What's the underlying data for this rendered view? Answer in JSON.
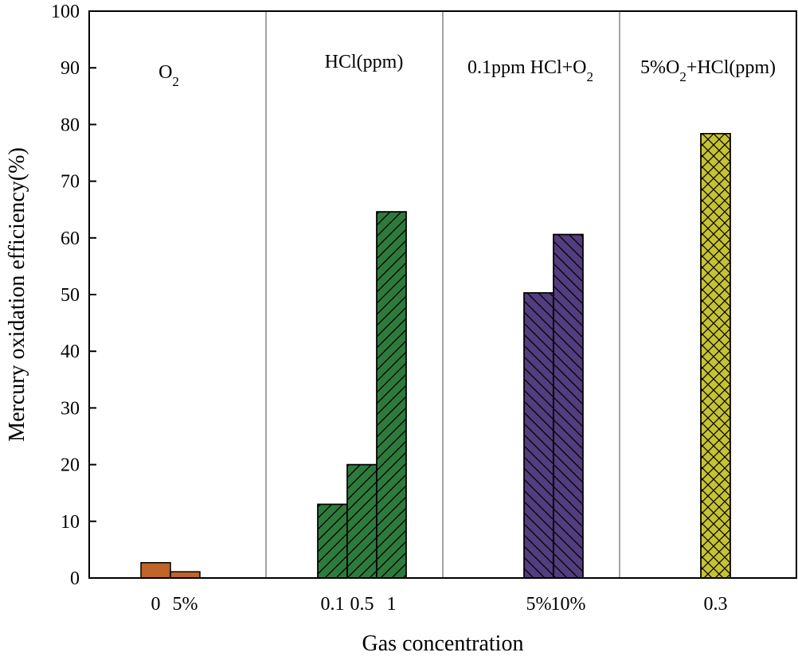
{
  "chart_data": {
    "type": "bar",
    "title": "",
    "xlabel": "Gas concentration",
    "ylabel": "Mercury oxidation efficiency(%)",
    "ylim": [
      0,
      100
    ],
    "yticks": [
      0,
      10,
      20,
      30,
      40,
      50,
      60,
      70,
      80,
      90,
      100
    ],
    "groups": [
      {
        "label": "O2",
        "label_parts": [
          {
            "t": "O"
          },
          {
            "t": "2",
            "sub": true
          }
        ],
        "color": "#c0642a",
        "pattern": "none",
        "bars": [
          {
            "category": "0",
            "value": 2.7
          },
          {
            "category": "5%",
            "value": 1.1
          }
        ]
      },
      {
        "label": "HCl(ppm)",
        "label_parts": [
          {
            "t": "HCl(ppm)"
          }
        ],
        "color": "#2e7a3c",
        "pattern": "forward-diagonal",
        "bars": [
          {
            "category": "0.1",
            "value": 13.0
          },
          {
            "category": "0.5",
            "value": 20.0
          },
          {
            "category": "1",
            "value": 64.6
          }
        ]
      },
      {
        "label": "0.1ppm HCl+O2",
        "label_parts": [
          {
            "t": "0.1ppm HCl+O"
          },
          {
            "t": "2",
            "sub": true
          }
        ],
        "color": "#523d7e",
        "pattern": "back-diagonal",
        "bars": [
          {
            "category": "5%",
            "value": 50.3
          },
          {
            "category": "10%",
            "value": 60.6
          }
        ]
      },
      {
        "label": "5%O2+HCl(ppm)",
        "label_parts": [
          {
            "t": "5%O"
          },
          {
            "t": "2",
            "sub": true
          },
          {
            "t": "+HCl(ppm)"
          }
        ],
        "color": "#c6c232",
        "pattern": "crosshatch",
        "bars": [
          {
            "category": "0.3",
            "value": 78.4
          }
        ]
      }
    ]
  }
}
